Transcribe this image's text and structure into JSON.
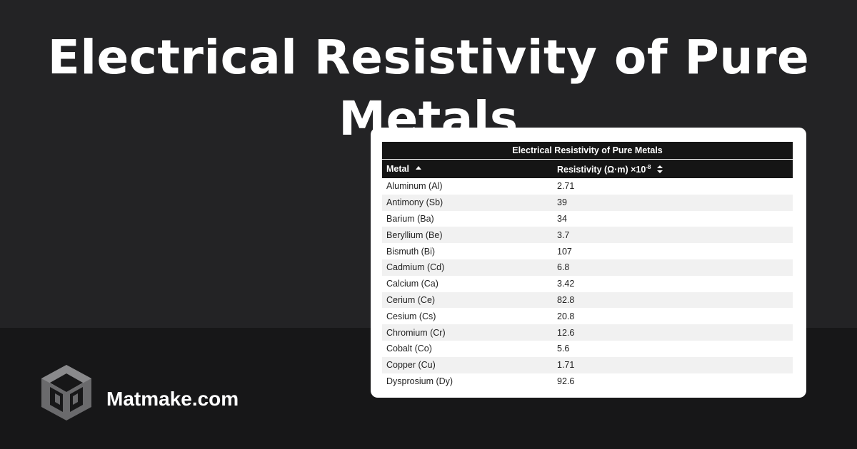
{
  "headline": "Electrical Resistivity of Pure Metals",
  "brand": {
    "name": "Matmake.com",
    "logo": "matmake-cube-logo"
  },
  "table": {
    "title": "Electrical Resistivity of Pure Metals",
    "columns": {
      "metal": "Metal",
      "resistivity": "Resistivity (Ω·m) ×10",
      "resistivity_exponent": "-8"
    },
    "sort_icons": {
      "metal": "sort-ascending-icon",
      "resistivity": "sort-both-icon"
    },
    "rows": [
      {
        "metal": "Aluminum (Al)",
        "value": "2.71"
      },
      {
        "metal": "Antimony (Sb)",
        "value": "39"
      },
      {
        "metal": "Barium (Ba)",
        "value": "34"
      },
      {
        "metal": "Beryllium (Be)",
        "value": "3.7"
      },
      {
        "metal": "Bismuth (Bi)",
        "value": "107"
      },
      {
        "metal": "Cadmium (Cd)",
        "value": "6.8"
      },
      {
        "metal": "Calcium (Ca)",
        "value": "3.42"
      },
      {
        "metal": "Cerium (Ce)",
        "value": "82.8"
      },
      {
        "metal": "Cesium (Cs)",
        "value": "20.8"
      },
      {
        "metal": "Chromium (Cr)",
        "value": "12.6"
      },
      {
        "metal": "Cobalt (Co)",
        "value": "5.6"
      },
      {
        "metal": "Copper (Cu)",
        "value": "1.71"
      },
      {
        "metal": "Dysprosium (Dy)",
        "value": "92.6"
      }
    ]
  },
  "colors": {
    "background": "#232325",
    "band": "#171718",
    "header": "#151515",
    "stripe": "#f1f1f1"
  }
}
